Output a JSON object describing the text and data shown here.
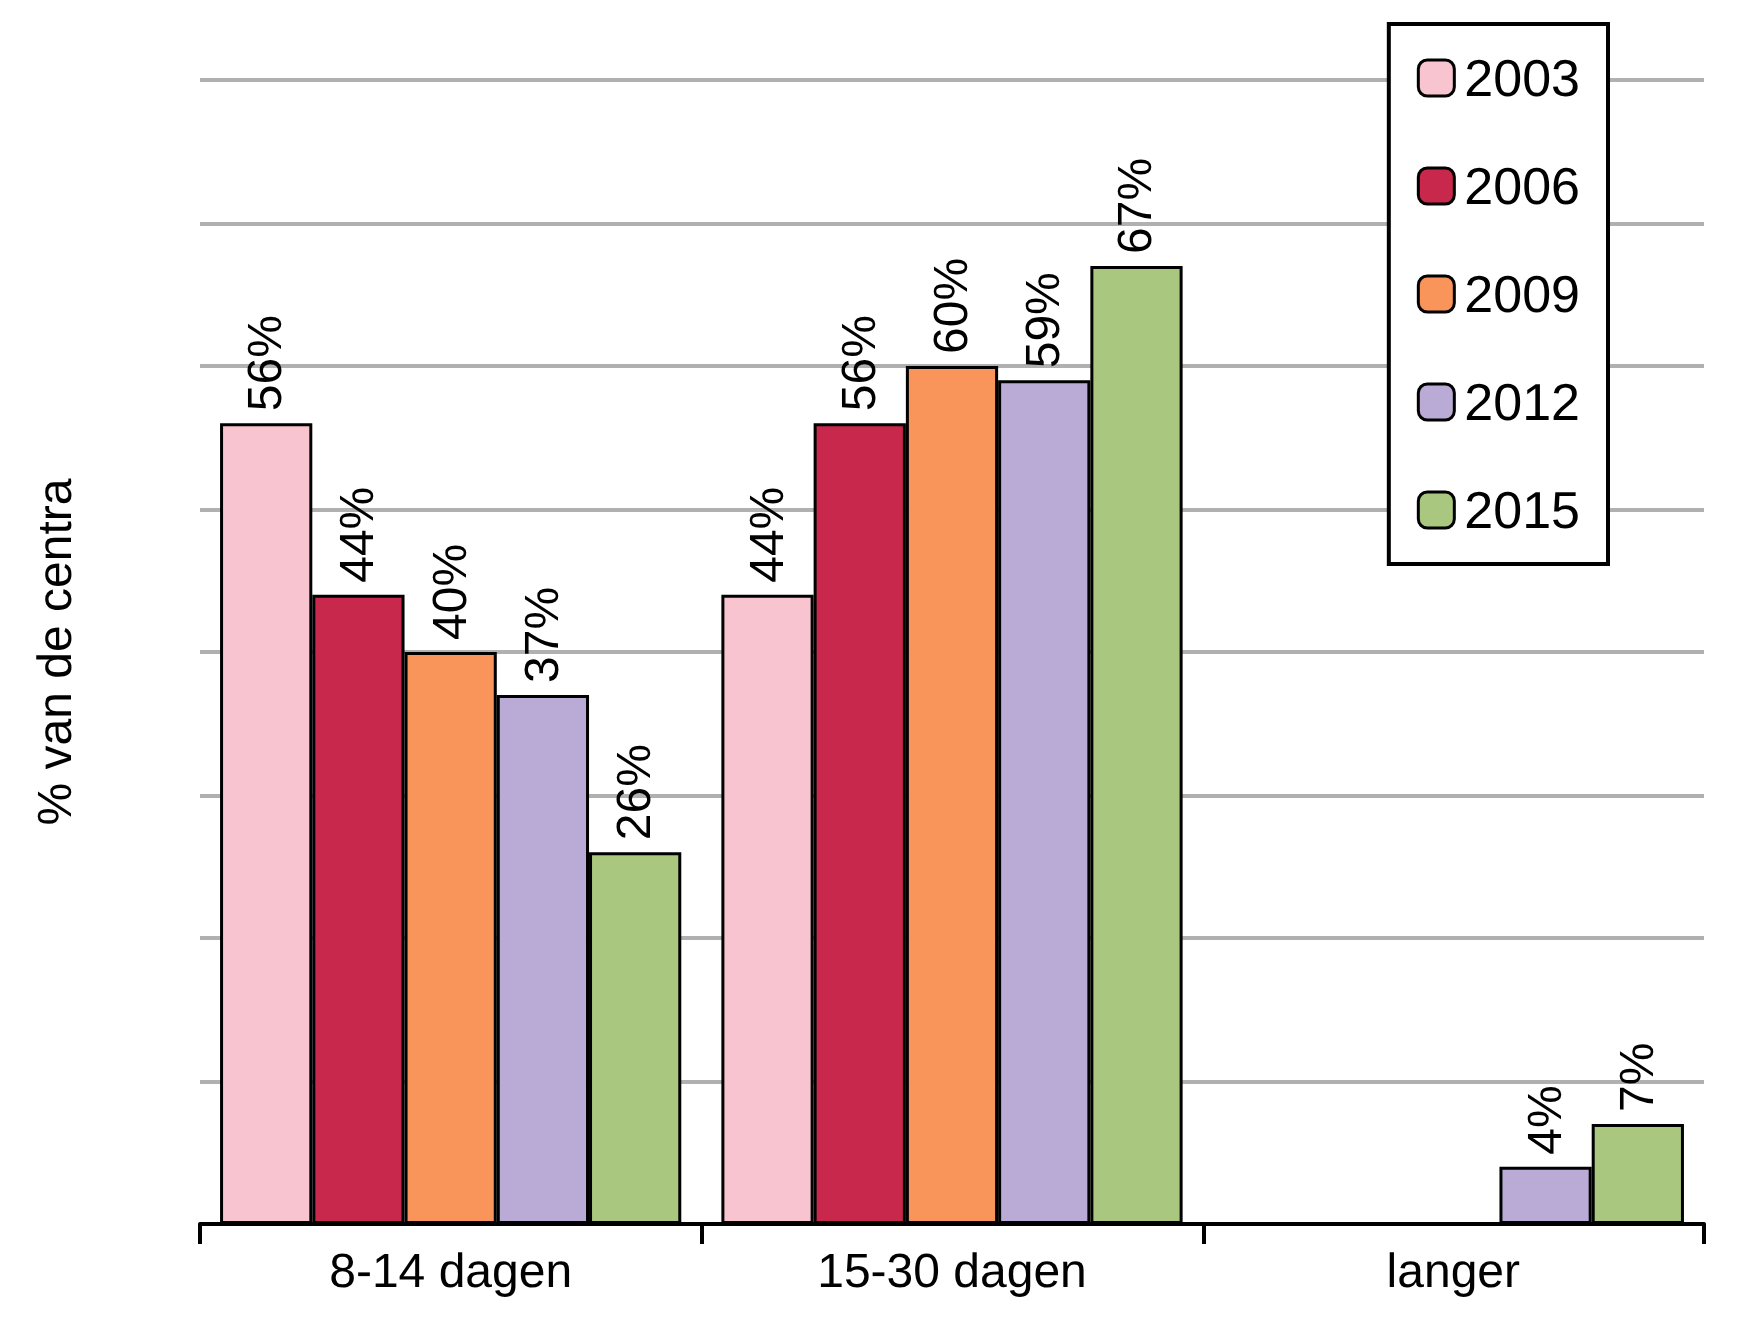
{
  "chart_data": {
    "type": "bar",
    "ylabel": "% van de centra",
    "categories": [
      "8-14 dagen",
      "15-30 dagen",
      "langer"
    ],
    "series": [
      {
        "name": "2003",
        "color": "#f7c4cf",
        "values": [
          56,
          44,
          null
        ],
        "value_labels": [
          "56%",
          "44%",
          null
        ]
      },
      {
        "name": "2006",
        "color": "#c8284c",
        "values": [
          44,
          56,
          null
        ],
        "value_labels": [
          "44%",
          "56%",
          null
        ]
      },
      {
        "name": "2009",
        "color": "#f9945a",
        "values": [
          40,
          60,
          null
        ],
        "value_labels": [
          "40%",
          "60%",
          null
        ]
      },
      {
        "name": "2012",
        "color": "#b9aad6",
        "values": [
          37,
          59,
          4
        ],
        "value_labels": [
          "37%",
          "59%",
          "4%"
        ]
      },
      {
        "name": "2015",
        "color": "#a9c77e",
        "values": [
          26,
          67,
          7
        ],
        "value_labels": [
          "26%",
          "67%",
          "7%"
        ]
      }
    ],
    "ylim": [
      0,
      80
    ],
    "yticks": [
      0,
      10,
      20,
      30,
      40,
      50,
      60,
      70,
      80
    ],
    "grid": "y",
    "tick_labels": "x",
    "legend": "top right"
  }
}
